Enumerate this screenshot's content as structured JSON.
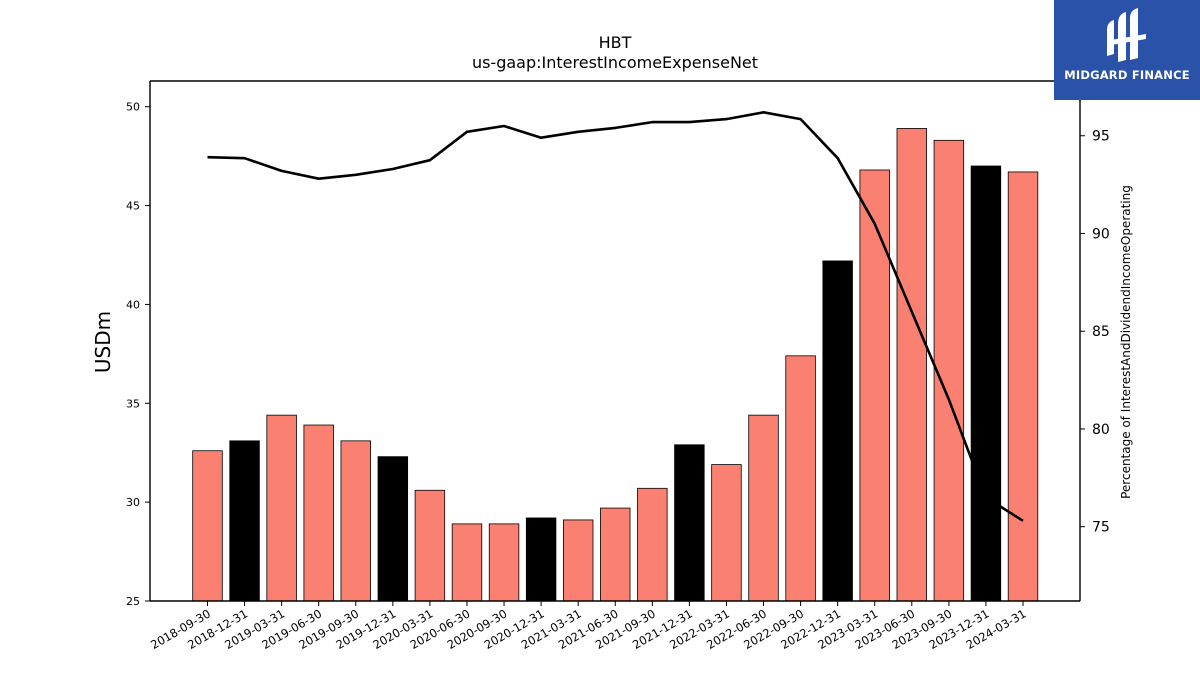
{
  "chart_data": {
    "type": "bar",
    "title": "HBT",
    "subtitle": "us-gaap:InterestIncomeExpenseNet",
    "ylabel": "USDm",
    "y2label": "Percentage of InterestAndDividendIncomeOperating",
    "ylim": [
      25,
      51.3
    ],
    "y2lim": [
      71.2,
      97.8
    ],
    "yticks": [
      25,
      30,
      35,
      40,
      45,
      50
    ],
    "y2ticks": [
      75,
      80,
      85,
      90,
      95
    ],
    "grid": false,
    "categories": [
      "2018-09-30",
      "2018-12-31",
      "2019-03-31",
      "2019-06-30",
      "2019-09-30",
      "2019-12-31",
      "2020-03-31",
      "2020-06-30",
      "2020-09-30",
      "2020-12-31",
      "2021-03-31",
      "2021-06-30",
      "2021-09-30",
      "2021-12-31",
      "2022-03-31",
      "2022-06-30",
      "2022-09-30",
      "2022-12-31",
      "2023-03-31",
      "2023-06-30",
      "2023-09-30",
      "2023-12-31",
      "2024-03-31"
    ],
    "series": [
      {
        "type": "bar",
        "values": [
          32.6,
          33.1,
          34.4,
          33.9,
          33.1,
          32.3,
          30.6,
          28.9,
          28.9,
          29.2,
          29.1,
          29.7,
          30.7,
          32.9,
          31.9,
          34.4,
          37.4,
          42.2,
          46.8,
          48.9,
          48.3,
          47.0,
          46.7
        ],
        "highlight": [
          false,
          true,
          false,
          false,
          false,
          true,
          false,
          false,
          false,
          true,
          false,
          false,
          false,
          true,
          false,
          false,
          false,
          true,
          false,
          false,
          false,
          true,
          false
        ],
        "color": "#fa8072",
        "highlight_color": "#000000"
      },
      {
        "type": "line",
        "axis": "right",
        "values": [
          93.9,
          93.85,
          93.2,
          92.8,
          93.0,
          93.3,
          93.75,
          95.2,
          95.5,
          94.9,
          95.2,
          95.4,
          95.7,
          95.7,
          95.85,
          96.2,
          95.85,
          93.85,
          90.5,
          86.0,
          81.5,
          76.5,
          75.3
        ],
        "color": "#000000"
      }
    ]
  },
  "logo": {
    "text": "MIDGARD FINANCE",
    "background": "#2a52a8"
  }
}
